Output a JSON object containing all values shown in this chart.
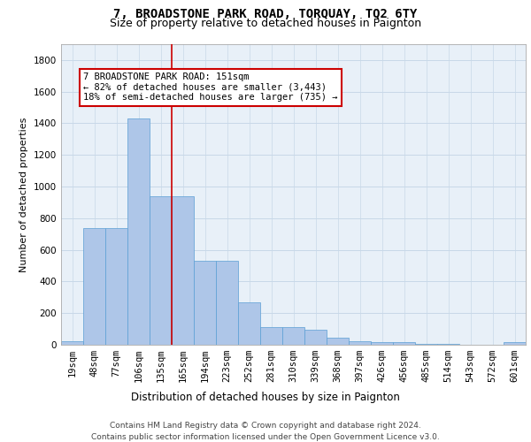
{
  "title": "7, BROADSTONE PARK ROAD, TORQUAY, TQ2 6TY",
  "subtitle": "Size of property relative to detached houses in Paignton",
  "xlabel": "Distribution of detached houses by size in Paignton",
  "ylabel": "Number of detached properties",
  "bin_labels": [
    "19sqm",
    "48sqm",
    "77sqm",
    "106sqm",
    "135sqm",
    "165sqm",
    "194sqm",
    "223sqm",
    "252sqm",
    "281sqm",
    "310sqm",
    "339sqm",
    "368sqm",
    "397sqm",
    "426sqm",
    "456sqm",
    "485sqm",
    "514sqm",
    "543sqm",
    "572sqm",
    "601sqm"
  ],
  "bar_values": [
    25,
    740,
    740,
    1430,
    940,
    940,
    530,
    530,
    270,
    110,
    110,
    95,
    45,
    25,
    15,
    15,
    5,
    5,
    0,
    0,
    15
  ],
  "bar_color": "#aec6e8",
  "bar_edge_color": "#5a9fd4",
  "vline_pos": 4.5,
  "vline_color": "#cc0000",
  "annotation_text": "7 BROADSTONE PARK ROAD: 151sqm\n← 82% of detached houses are smaller (3,443)\n18% of semi-detached houses are larger (735) →",
  "annotation_box_color": "#ffffff",
  "annotation_box_edge_color": "#cc0000",
  "ylim": [
    0,
    1900
  ],
  "yticks": [
    0,
    200,
    400,
    600,
    800,
    1000,
    1200,
    1400,
    1600,
    1800
  ],
  "grid_color": "#c8d8e8",
  "bg_color": "#e8f0f8",
  "footer": "Contains HM Land Registry data © Crown copyright and database right 2024.\nContains public sector information licensed under the Open Government Licence v3.0.",
  "title_fontsize": 10,
  "subtitle_fontsize": 9,
  "xlabel_fontsize": 8.5,
  "ylabel_fontsize": 8,
  "tick_fontsize": 7.5,
  "annotation_fontsize": 7.5,
  "footer_fontsize": 6.5
}
